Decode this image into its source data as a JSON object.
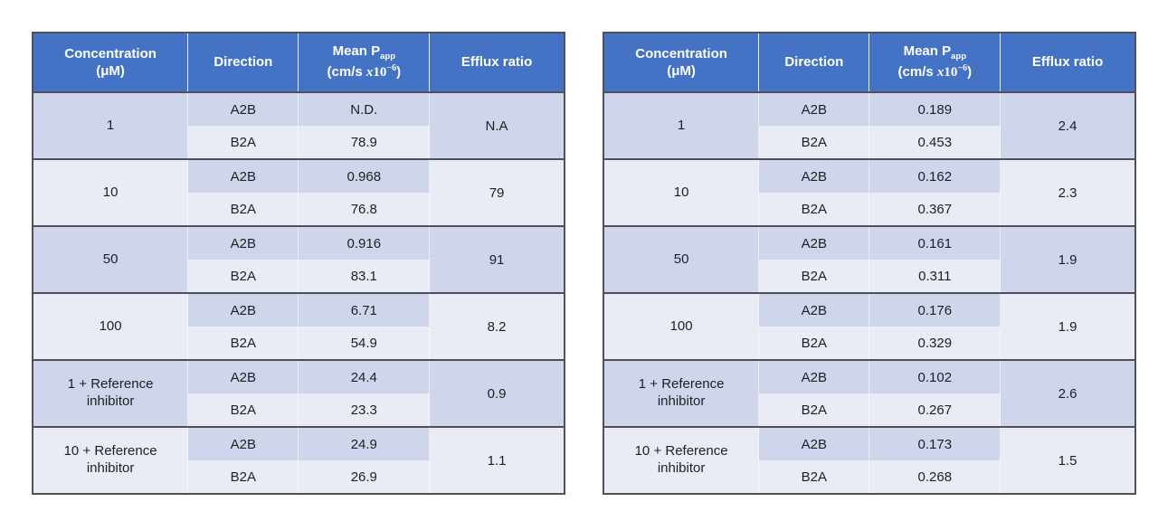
{
  "colors": {
    "header_bg": "#4472c4",
    "header_text": "#ffffff",
    "band_dark": "#cfd5ea",
    "band_light": "#e9ebf5",
    "border_dark": "#50505a",
    "body_text": "#1f1f23"
  },
  "header": {
    "concentration_line1": "Concentration",
    "concentration_line2": "(μM)",
    "direction": "Direction",
    "mean_line1_text": "Mean P",
    "mean_line1_sub": "app",
    "mean_line2_open": "(cm/s ",
    "mean_line2_x": "x",
    "mean_line2_base": "10",
    "mean_line2_exp": "−6",
    "mean_line2_close": ")",
    "efflux": "Efflux ratio"
  },
  "directions": {
    "a2b": "A2B",
    "b2a": "B2A"
  },
  "chart_data": [
    {
      "type": "table",
      "name": "left-table",
      "columns": [
        "Concentration (μM)",
        "Direction",
        "Mean Papp (cm/s x10^-6)",
        "Efflux ratio"
      ],
      "groups": [
        {
          "concentration": "1",
          "a2b": "N.D.",
          "b2a": "78.9",
          "efflux": "N.A"
        },
        {
          "concentration": "10",
          "a2b": "0.968",
          "b2a": "76.8",
          "efflux": "79"
        },
        {
          "concentration": "50",
          "a2b": "0.916",
          "b2a": "83.1",
          "efflux": "91"
        },
        {
          "concentration": "100",
          "a2b": "6.71",
          "b2a": "54.9",
          "efflux": "8.2"
        },
        {
          "concentration": "1 + Reference inhibitor",
          "a2b": "24.4",
          "b2a": "23.3",
          "efflux": "0.9"
        },
        {
          "concentration": "10 + Reference inhibitor",
          "a2b": "24.9",
          "b2a": "26.9",
          "efflux": "1.1"
        }
      ]
    },
    {
      "type": "table",
      "name": "right-table",
      "columns": [
        "Concentration (μM)",
        "Direction",
        "Mean Papp (cm/s x10^-6)",
        "Efflux ratio"
      ],
      "groups": [
        {
          "concentration": "1",
          "a2b": "0.189",
          "b2a": "0.453",
          "efflux": "2.4"
        },
        {
          "concentration": "10",
          "a2b": "0.162",
          "b2a": "0.367",
          "efflux": "2.3"
        },
        {
          "concentration": "50",
          "a2b": "0.161",
          "b2a": "0.311",
          "efflux": "1.9"
        },
        {
          "concentration": "100",
          "a2b": "0.176",
          "b2a": "0.329",
          "efflux": "1.9"
        },
        {
          "concentration": "1 + Reference inhibitor",
          "a2b": "0.102",
          "b2a": "0.267",
          "efflux": "2.6"
        },
        {
          "concentration": "10 + Reference inhibitor",
          "a2b": "0.173",
          "b2a": "0.268",
          "efflux": "1.5"
        }
      ]
    }
  ]
}
